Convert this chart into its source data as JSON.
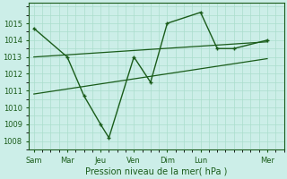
{
  "xlabel": "Pression niveau de la mer( hPa )",
  "bg_color": "#cceee8",
  "grid_color": "#aaddcc",
  "line_color": "#1a5c1a",
  "ylim": [
    1007.5,
    1016.2
  ],
  "yticks": [
    1008,
    1009,
    1010,
    1011,
    1012,
    1013,
    1014,
    1015
  ],
  "x_labels": [
    "Sam",
    "Mar",
    "Jeu",
    "Ven",
    "Dim",
    "Lun",
    "Mer"
  ],
  "x_ticks": [
    0,
    2,
    4,
    6,
    8,
    10,
    14
  ],
  "xlim": [
    -0.3,
    15.0
  ],
  "main_x": [
    0,
    2,
    3,
    4,
    4.5,
    6,
    7,
    8,
    10,
    11,
    12,
    14
  ],
  "main_y": [
    1014.7,
    1013.0,
    1010.7,
    1009.0,
    1008.2,
    1013.0,
    1011.5,
    1015.0,
    1015.65,
    1013.5,
    1013.5,
    1014.0
  ],
  "trend1_x": [
    0,
    14
  ],
  "trend1_y": [
    1013.0,
    1013.9
  ],
  "trend2_x": [
    0,
    14
  ],
  "trend2_y": [
    1010.8,
    1012.9
  ],
  "tick_fontsize": 6.0,
  "label_fontsize": 7.0
}
